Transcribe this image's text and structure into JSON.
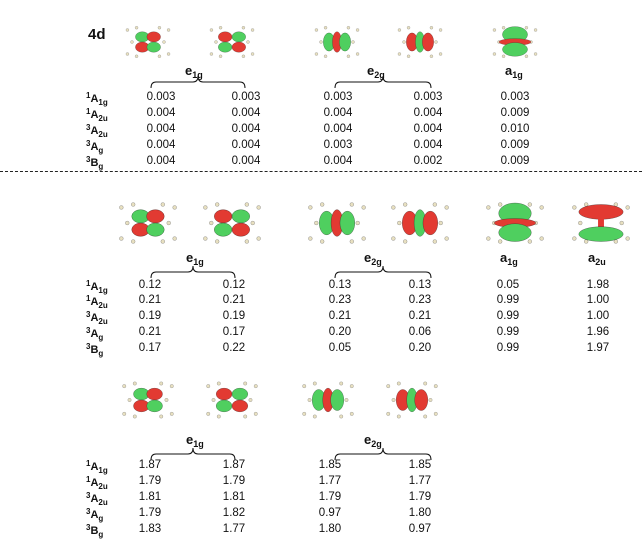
{
  "sections": [
    {
      "tag": "4d",
      "orbitals": [
        "e1g-a",
        "e1g-b",
        "e2g-a",
        "e2g-b",
        "a1g"
      ],
      "symmetry_labels": [
        {
          "base": "e",
          "sub": "1g"
        },
        {
          "base": "e",
          "sub": "2g"
        },
        {
          "base": "a",
          "sub": "1g"
        }
      ],
      "state_labels": [
        {
          "sup": "1",
          "base": "A",
          "sub": "1g"
        },
        {
          "sup": "1",
          "base": "A",
          "sub": "2u"
        },
        {
          "sup": "3",
          "base": "A",
          "sub": "2u"
        },
        {
          "sup": "3",
          "base": "A",
          "sub": "g"
        },
        {
          "sup": "3",
          "base": "B",
          "sub": "g"
        }
      ],
      "rows": [
        [
          "0.003",
          "0.003",
          "0.003",
          "0.003",
          "0.003"
        ],
        [
          "0.004",
          "0.004",
          "0.004",
          "0.004",
          "0.009"
        ],
        [
          "0.004",
          "0.004",
          "0.004",
          "0.004",
          "0.010"
        ],
        [
          "0.004",
          "0.004",
          "0.003",
          "0.004",
          "0.009"
        ],
        [
          "0.004",
          "0.004",
          "0.004",
          "0.002",
          "0.009"
        ]
      ]
    },
    {
      "tag": "",
      "orbitals": [
        "e1g-a",
        "e1g-b",
        "e2g-a",
        "e2g-b",
        "a1g",
        "a2u"
      ],
      "symmetry_labels": [
        {
          "base": "e",
          "sub": "1g"
        },
        {
          "base": "e",
          "sub": "2g"
        },
        {
          "base": "a",
          "sub": "1g"
        },
        {
          "base": "a",
          "sub": "2u"
        }
      ],
      "state_labels": [
        {
          "sup": "1",
          "base": "A",
          "sub": "1g"
        },
        {
          "sup": "1",
          "base": "A",
          "sub": "2u"
        },
        {
          "sup": "3",
          "base": "A",
          "sub": "2u"
        },
        {
          "sup": "3",
          "base": "A",
          "sub": "g"
        },
        {
          "sup": "3",
          "base": "B",
          "sub": "g"
        }
      ],
      "rows": [
        [
          "0.12",
          "0.12",
          "0.13",
          "0.13",
          "0.05",
          "1.98"
        ],
        [
          "0.21",
          "0.21",
          "0.23",
          "0.23",
          "0.99",
          "1.00"
        ],
        [
          "0.19",
          "0.19",
          "0.21",
          "0.21",
          "0.99",
          "1.00"
        ],
        [
          "0.21",
          "0.17",
          "0.20",
          "0.06",
          "0.99",
          "1.96"
        ],
        [
          "0.17",
          "0.22",
          "0.05",
          "0.20",
          "0.99",
          "1.97"
        ]
      ]
    },
    {
      "tag": "",
      "orbitals": [
        "e1g-a",
        "e1g-b",
        "e2g-a",
        "e2g-b"
      ],
      "symmetry_labels": [
        {
          "base": "e",
          "sub": "1g"
        },
        {
          "base": "e",
          "sub": "2g"
        }
      ],
      "state_labels": [
        {
          "sup": "1",
          "base": "A",
          "sub": "1g"
        },
        {
          "sup": "1",
          "base": "A",
          "sub": "2u"
        },
        {
          "sup": "3",
          "base": "A",
          "sub": "2u"
        },
        {
          "sup": "3",
          "base": "A",
          "sub": "g"
        },
        {
          "sup": "3",
          "base": "B",
          "sub": "g"
        }
      ],
      "rows": [
        [
          "1.87",
          "1.87",
          "1.85",
          "1.85"
        ],
        [
          "1.79",
          "1.79",
          "1.77",
          "1.77"
        ],
        [
          "1.81",
          "1.81",
          "1.79",
          "1.79"
        ],
        [
          "1.79",
          "1.82",
          "0.97",
          "1.80"
        ],
        [
          "1.83",
          "1.77",
          "1.80",
          "0.97"
        ]
      ]
    }
  ],
  "colors": {
    "lobe_red": "#e23a32",
    "lobe_green": "#4fcf5f",
    "atom": "#e8e0c0"
  }
}
